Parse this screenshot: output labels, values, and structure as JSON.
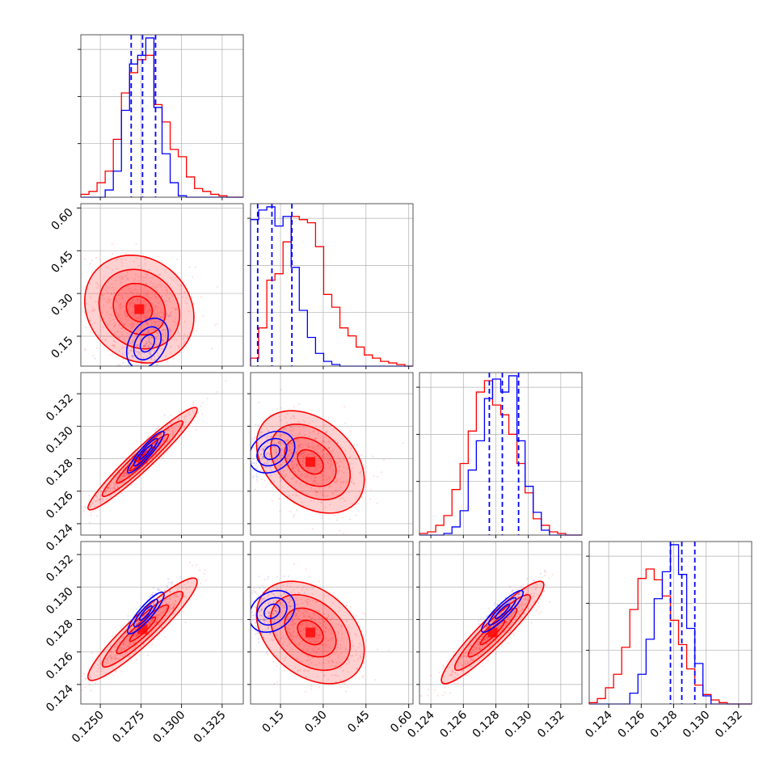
{
  "chart_data": {
    "type": "corner",
    "grid": true,
    "colors": {
      "red": "#ff0000",
      "blue": "#0000ff"
    },
    "params": [
      {
        "range": [
          0.1238,
          0.1338
        ],
        "ticks": [
          0.125,
          0.1275,
          0.13,
          0.1325
        ],
        "tick_labels": [
          "0.1250",
          "0.1275",
          "0.1300",
          "0.1325"
        ]
      },
      {
        "range": [
          0.045,
          0.615
        ],
        "ticks": [
          0.15,
          0.3,
          0.45,
          0.6
        ],
        "tick_labels": [
          "0.15",
          "0.30",
          "0.45",
          "0.60"
        ]
      },
      {
        "range": [
          0.1233,
          0.1333
        ],
        "ticks": [
          0.124,
          0.126,
          0.128,
          0.13,
          0.132
        ],
        "tick_labels": [
          "0.124",
          "0.126",
          "0.128",
          "0.130",
          "0.132"
        ]
      },
      {
        "range": [
          0.1228,
          0.1328
        ],
        "ticks": [
          0.124,
          0.126,
          0.128,
          0.13,
          0.132
        ],
        "tick_labels": [
          "0.124",
          "0.126",
          "0.128",
          "0.130",
          "0.132"
        ]
      }
    ],
    "histograms": [
      {
        "param": 0,
        "bin_edges": [
          0.1238,
          0.1243,
          0.1248,
          0.1253,
          0.1258,
          0.1263,
          0.1268,
          0.1273,
          0.1278,
          0.1283,
          0.1288,
          0.1293,
          0.1298,
          0.1303,
          0.1308,
          0.1313,
          0.1318,
          0.1323,
          0.1328,
          0.1333,
          0.1338
        ],
        "red": [
          2,
          4,
          10,
          18,
          40,
          72,
          86,
          95,
          98,
          64,
          52,
          33,
          28,
          14,
          6,
          4,
          2,
          1,
          0,
          0
        ],
        "blue": [
          0,
          0,
          0,
          5,
          18,
          60,
          92,
          98,
          110,
          62,
          30,
          10,
          1,
          0,
          0,
          0,
          0,
          0,
          0,
          0
        ],
        "quantiles": [
          0.1269,
          0.1276,
          0.1284
        ]
      },
      {
        "param": 1,
        "bin_edges": [
          0.045,
          0.0735,
          0.102,
          0.1305,
          0.159,
          0.1875,
          0.216,
          0.2445,
          0.273,
          0.3015,
          0.33,
          0.3585,
          0.387,
          0.4155,
          0.444,
          0.4725,
          0.501,
          0.5295,
          0.558,
          0.5865,
          0.615
        ],
        "red": [
          5,
          24,
          54,
          58,
          78,
          94,
          92,
          90,
          75,
          45,
          37,
          24,
          19,
          12,
          7,
          5,
          3,
          2,
          1,
          0
        ],
        "blue": [
          92,
          98,
          100,
          88,
          94,
          62,
          35,
          18,
          8,
          3,
          1,
          0,
          0,
          0,
          0,
          0,
          0,
          0,
          0,
          0
        ],
        "quantiles": [
          0.07,
          0.12,
          0.19
        ]
      },
      {
        "param": 2,
        "bin_edges": [
          0.1233,
          0.1238,
          0.1243,
          0.1248,
          0.1253,
          0.1258,
          0.1263,
          0.1268,
          0.1273,
          0.1278,
          0.1283,
          0.1288,
          0.1293,
          0.1298,
          0.1303,
          0.1308,
          0.1313,
          0.1318,
          0.1323,
          0.1328,
          0.1333
        ],
        "red": [
          1,
          2,
          6,
          12,
          28,
          44,
          64,
          88,
          95,
          80,
          74,
          62,
          44,
          26,
          10,
          6,
          2,
          1,
          0,
          0
        ],
        "blue": [
          0,
          0,
          0,
          1,
          5,
          15,
          40,
          58,
          84,
          96,
          88,
          98,
          58,
          30,
          14,
          3,
          0,
          0,
          0,
          0
        ],
        "quantiles": [
          0.1276,
          0.1284,
          0.1294
        ]
      },
      {
        "param": 3,
        "bin_edges": [
          0.1228,
          0.1233,
          0.1238,
          0.1243,
          0.1248,
          0.1253,
          0.1258,
          0.1263,
          0.1268,
          0.1273,
          0.1278,
          0.1283,
          0.1288,
          0.1293,
          0.1298,
          0.1303,
          0.1308,
          0.1313,
          0.1318,
          0.1323,
          0.1328
        ],
        "red": [
          1,
          4,
          12,
          22,
          42,
          70,
          93,
          100,
          92,
          80,
          62,
          44,
          26,
          14,
          7,
          3,
          1,
          0,
          0,
          0
        ],
        "blue": [
          0,
          0,
          0,
          0,
          0,
          8,
          22,
          48,
          78,
          98,
          118,
          96,
          56,
          30,
          6,
          0,
          0,
          0,
          0,
          0
        ],
        "quantiles": [
          0.1278,
          0.1285,
          0.1293
        ]
      }
    ],
    "scatter": [
      {
        "row": 1,
        "col": 0,
        "red": {
          "mean": [
            0.1274,
            0.245
          ],
          "sd": [
            0.0016,
            0.09
          ],
          "corr": -0.15
        },
        "blue": {
          "mean": [
            0.1279,
            0.125
          ],
          "sd": [
            0.0008,
            0.055
          ],
          "corr": 0.35
        }
      },
      {
        "row": 2,
        "col": 0,
        "red": {
          "mean": [
            0.1276,
            0.128
          ],
          "sd": [
            0.0016,
            0.0015
          ],
          "corr": 0.96
        },
        "blue": {
          "mean": [
            0.1278,
            0.1284
          ],
          "sd": [
            0.0007,
            0.0008
          ],
          "corr": 0.92
        }
      },
      {
        "row": 2,
        "col": 1,
        "red": {
          "mean": [
            0.255,
            0.1278
          ],
          "sd": [
            0.09,
            0.0015
          ],
          "corr": -0.35
        },
        "blue": {
          "mean": [
            0.12,
            0.1284
          ],
          "sd": [
            0.05,
            0.0008
          ],
          "corr": 0.25
        }
      },
      {
        "row": 3,
        "col": 0,
        "red": {
          "mean": [
            0.1276,
            0.1274
          ],
          "sd": [
            0.0016,
            0.0015
          ],
          "corr": 0.93
        },
        "blue": {
          "mean": [
            0.1278,
            0.1284
          ],
          "sd": [
            0.0007,
            0.0008
          ],
          "corr": 0.88
        }
      },
      {
        "row": 3,
        "col": 1,
        "red": {
          "mean": [
            0.255,
            0.1272
          ],
          "sd": [
            0.09,
            0.0015
          ],
          "corr": -0.35
        },
        "blue": {
          "mean": [
            0.12,
            0.1285
          ],
          "sd": [
            0.05,
            0.0008
          ],
          "corr": 0.25
        }
      },
      {
        "row": 3,
        "col": 2,
        "red": {
          "mean": [
            0.1278,
            0.1272
          ],
          "sd": [
            0.0015,
            0.0015
          ],
          "corr": 0.93
        },
        "blue": {
          "mean": [
            0.1284,
            0.1285
          ],
          "sd": [
            0.0008,
            0.0008
          ],
          "corr": 0.9
        }
      }
    ]
  }
}
